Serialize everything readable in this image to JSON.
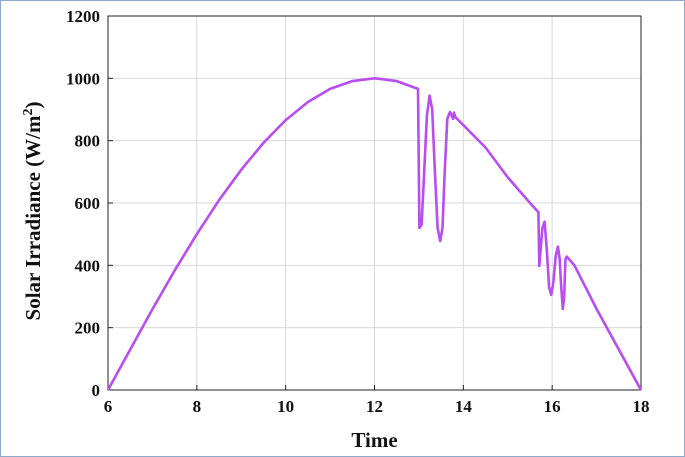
{
  "chart_data": {
    "type": "line",
    "title": "",
    "xlabel": "Time",
    "ylabel": "Solar Irradiance (W/m",
    "ylabel_sup": "2",
    "ylabel_close": ")",
    "xlim": [
      6,
      18
    ],
    "ylim": [
      0,
      1200
    ],
    "xticks": [
      6,
      8,
      10,
      12,
      14,
      16,
      18
    ],
    "yticks": [
      0,
      200,
      400,
      600,
      800,
      1000,
      1200
    ],
    "grid": true,
    "line_color": "#b84df0",
    "series": [
      {
        "name": "",
        "x": [
          6.0,
          6.5,
          7.0,
          7.5,
          8.0,
          8.5,
          9.0,
          9.5,
          10.0,
          10.5,
          11.0,
          11.5,
          12.0,
          12.5,
          12.98,
          13.01,
          13.06,
          13.12,
          13.18,
          13.24,
          13.3,
          13.36,
          13.42,
          13.48,
          13.53,
          13.58,
          13.64,
          13.7,
          13.74,
          13.77,
          13.79,
          13.82,
          14.0,
          14.5,
          15.0,
          15.5,
          15.69,
          15.71,
          15.74,
          15.78,
          15.83,
          15.88,
          15.93,
          15.98,
          16.03,
          16.08,
          16.13,
          16.17,
          16.2,
          16.24,
          16.27,
          16.29,
          16.3,
          16.33,
          16.5,
          17.0,
          17.5,
          18.0
        ],
        "y": [
          0,
          130,
          259,
          383,
          500,
          609,
          707,
          793,
          866,
          924,
          966,
          991,
          1000,
          991,
          966,
          520,
          530,
          700,
          880,
          945,
          900,
          700,
          520,
          478,
          520,
          700,
          870,
          892,
          880,
          870,
          890,
          876,
          850,
          778,
          682,
          600,
          570,
          398,
          450,
          520,
          540,
          450,
          330,
          305,
          350,
          430,
          460,
          420,
          340,
          260,
          300,
          380,
          420,
          428,
          400,
          260,
          130,
          0
        ]
      }
    ]
  }
}
